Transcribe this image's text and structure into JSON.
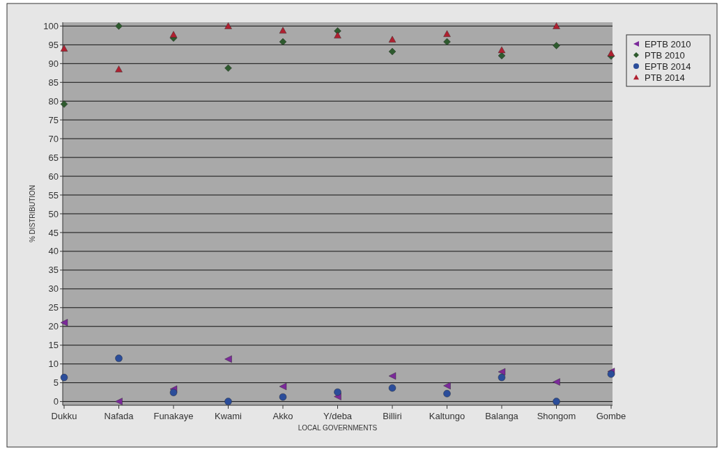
{
  "chart_data": {
    "type": "scatter",
    "xlabel": "LOCAL GOVERNMENTS",
    "ylabel": "% DISTRIBUTION",
    "categories": [
      "Dukku",
      "Nafada",
      "Funakaye",
      "Kwami",
      "Akko",
      "Y/deba",
      "Billiri",
      "Kaltungo",
      "Balanga",
      "Shongom",
      "Gombe"
    ],
    "ylim": [
      -1,
      101
    ],
    "yticks": [
      0,
      5,
      10,
      15,
      20,
      25,
      30,
      35,
      40,
      45,
      50,
      55,
      60,
      65,
      70,
      75,
      80,
      85,
      90,
      95,
      100
    ],
    "grid": "y",
    "legend": "top right",
    "series": [
      {
        "name": "EPTB 2010",
        "color": "#7b2a9a",
        "marker": "triangle-left",
        "values": [
          21,
          0,
          3.3,
          11.3,
          4,
          1.3,
          6.8,
          4.2,
          7.9,
          5.2,
          8
        ]
      },
      {
        "name": "PTB 2010",
        "color": "#2e5a2e",
        "marker": "diamond",
        "values": [
          79.2,
          100,
          96.8,
          88.8,
          95.8,
          98.7,
          93.2,
          95.8,
          92.1,
          94.8,
          92
        ]
      },
      {
        "name": "EPTB 2014",
        "color": "#2b4d9a",
        "marker": "circle",
        "values": [
          6.4,
          11.5,
          2.4,
          0,
          1.2,
          2.5,
          3.6,
          2.1,
          6.4,
          0,
          7.3
        ]
      },
      {
        "name": "PTB 2014",
        "color": "#b02030",
        "marker": "triangle",
        "values": [
          94,
          88.5,
          97.7,
          100,
          98.8,
          97.5,
          96.4,
          97.9,
          93.6,
          100,
          92.7
        ]
      }
    ]
  }
}
